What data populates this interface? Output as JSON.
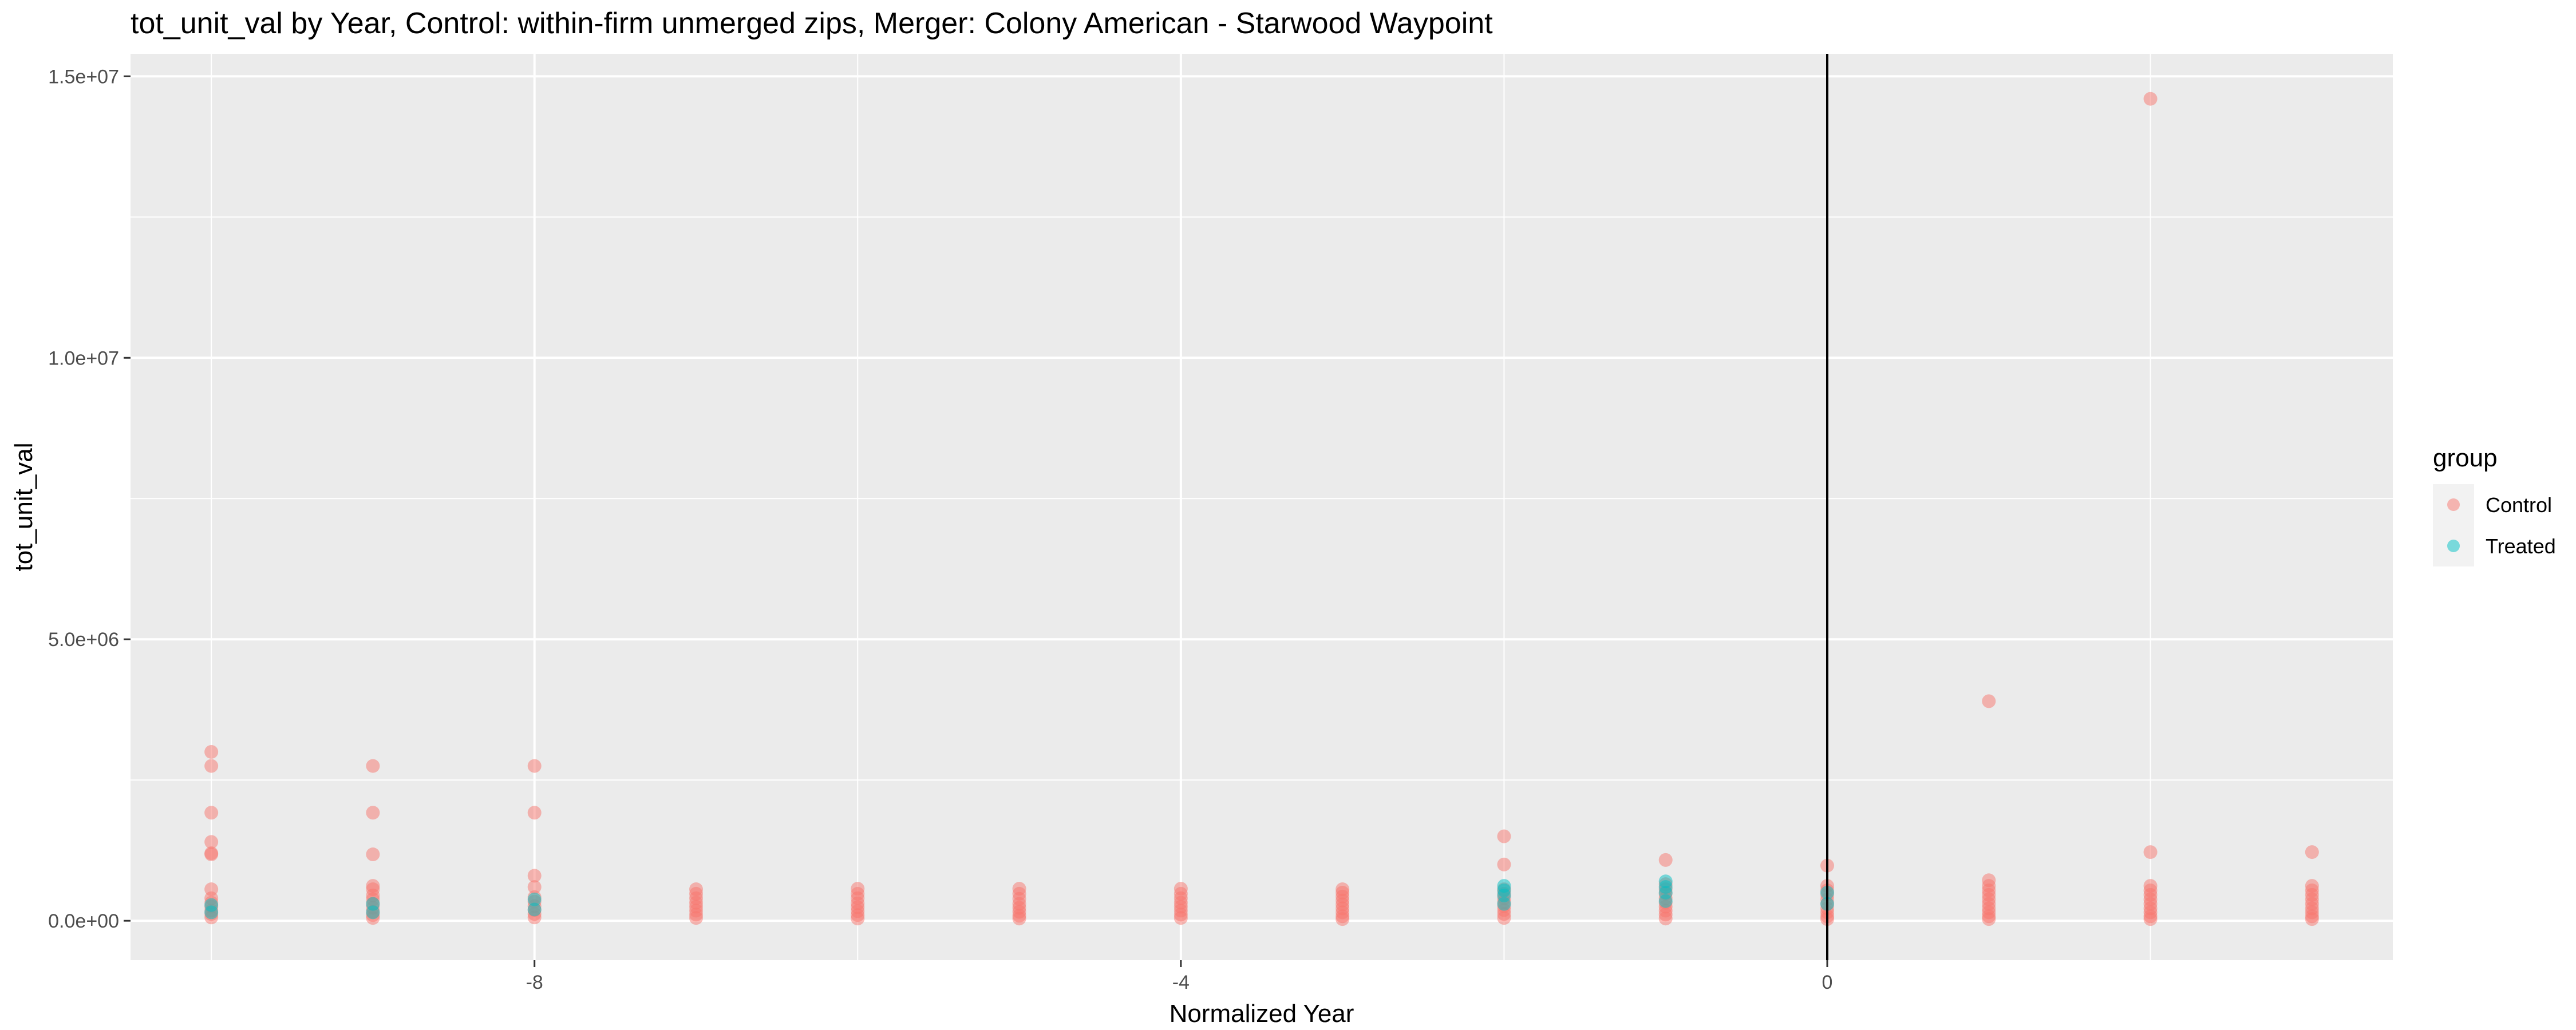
{
  "chart_data": {
    "type": "scatter",
    "title": "tot_unit_val by Year, Control: within-firm unmerged zips, Merger: Colony American - Starwood Waypoint",
    "xlabel": "Normalized Year",
    "ylabel": "tot_unit_val",
    "xlim": [
      -10.5,
      3.5
    ],
    "ylim": [
      -700000,
      15400000
    ],
    "x_ticks": [
      -8,
      -4,
      0
    ],
    "x_tick_labels": [
      "-8",
      "-4",
      "0"
    ],
    "y_ticks": [
      0,
      5000000,
      10000000,
      15000000
    ],
    "y_tick_labels": [
      "0.0e+00",
      "5.0e+06",
      "1.0e+07",
      "1.5e+07"
    ],
    "grid": true,
    "vline_x": 0,
    "legend": {
      "title": "group",
      "placement": "right"
    },
    "series": [
      {
        "name": "Control",
        "color": "#F8766D",
        "points": [
          [
            -10,
            3000000
          ],
          [
            -10,
            2750000
          ],
          [
            -10,
            1920000
          ],
          [
            -10,
            1400000
          ],
          [
            -10,
            1200000
          ],
          [
            -10,
            1180000
          ],
          [
            -10,
            560000
          ],
          [
            -10,
            400000
          ],
          [
            -10,
            320000
          ],
          [
            -10,
            250000
          ],
          [
            -10,
            180000
          ],
          [
            -10,
            120000
          ],
          [
            -10,
            60000
          ],
          [
            -9,
            2750000
          ],
          [
            -9,
            1920000
          ],
          [
            -9,
            1180000
          ],
          [
            -9,
            620000
          ],
          [
            -9,
            560000
          ],
          [
            -9,
            450000
          ],
          [
            -9,
            380000
          ],
          [
            -9,
            300000
          ],
          [
            -9,
            230000
          ],
          [
            -9,
            160000
          ],
          [
            -9,
            100000
          ],
          [
            -9,
            50000
          ],
          [
            -8,
            2750000
          ],
          [
            -8,
            1920000
          ],
          [
            -8,
            800000
          ],
          [
            -8,
            600000
          ],
          [
            -8,
            420000
          ],
          [
            -8,
            340000
          ],
          [
            -8,
            260000
          ],
          [
            -8,
            190000
          ],
          [
            -8,
            120000
          ],
          [
            -8,
            60000
          ],
          [
            -7,
            560000
          ],
          [
            -7,
            480000
          ],
          [
            -7,
            400000
          ],
          [
            -7,
            320000
          ],
          [
            -7,
            250000
          ],
          [
            -7,
            180000
          ],
          [
            -7,
            110000
          ],
          [
            -7,
            50000
          ],
          [
            -6,
            570000
          ],
          [
            -6,
            480000
          ],
          [
            -6,
            400000
          ],
          [
            -6,
            310000
          ],
          [
            -6,
            240000
          ],
          [
            -6,
            170000
          ],
          [
            -6,
            100000
          ],
          [
            -6,
            40000
          ],
          [
            -5,
            570000
          ],
          [
            -5,
            480000
          ],
          [
            -5,
            390000
          ],
          [
            -5,
            300000
          ],
          [
            -5,
            230000
          ],
          [
            -5,
            160000
          ],
          [
            -5,
            90000
          ],
          [
            -5,
            40000
          ],
          [
            -4,
            570000
          ],
          [
            -4,
            480000
          ],
          [
            -4,
            400000
          ],
          [
            -4,
            320000
          ],
          [
            -4,
            250000
          ],
          [
            -4,
            180000
          ],
          [
            -4,
            110000
          ],
          [
            -4,
            50000
          ],
          [
            -3,
            560000
          ],
          [
            -3,
            500000
          ],
          [
            -3,
            430000
          ],
          [
            -3,
            360000
          ],
          [
            -3,
            290000
          ],
          [
            -3,
            220000
          ],
          [
            -3,
            150000
          ],
          [
            -3,
            80000
          ],
          [
            -3,
            30000
          ],
          [
            -2,
            1500000
          ],
          [
            -2,
            1000000
          ],
          [
            -2,
            560000
          ],
          [
            -2,
            480000
          ],
          [
            -2,
            400000
          ],
          [
            -2,
            330000
          ],
          [
            -2,
            260000
          ],
          [
            -2,
            190000
          ],
          [
            -2,
            120000
          ],
          [
            -2,
            50000
          ],
          [
            -1,
            1080000
          ],
          [
            -1,
            650000
          ],
          [
            -1,
            560000
          ],
          [
            -1,
            480000
          ],
          [
            -1,
            400000
          ],
          [
            -1,
            320000
          ],
          [
            -1,
            250000
          ],
          [
            -1,
            180000
          ],
          [
            -1,
            110000
          ],
          [
            -1,
            40000
          ],
          [
            0,
            980000
          ],
          [
            0,
            620000
          ],
          [
            0,
            540000
          ],
          [
            0,
            460000
          ],
          [
            0,
            380000
          ],
          [
            0,
            300000
          ],
          [
            0,
            220000
          ],
          [
            0,
            150000
          ],
          [
            0,
            80000
          ],
          [
            0,
            30000
          ],
          [
            1,
            3900000
          ],
          [
            1,
            720000
          ],
          [
            1,
            620000
          ],
          [
            1,
            540000
          ],
          [
            1,
            460000
          ],
          [
            1,
            380000
          ],
          [
            1,
            300000
          ],
          [
            1,
            220000
          ],
          [
            1,
            150000
          ],
          [
            1,
            80000
          ],
          [
            1,
            30000
          ],
          [
            2,
            14600000
          ],
          [
            2,
            1220000
          ],
          [
            2,
            620000
          ],
          [
            2,
            540000
          ],
          [
            2,
            460000
          ],
          [
            2,
            380000
          ],
          [
            2,
            300000
          ],
          [
            2,
            220000
          ],
          [
            2,
            150000
          ],
          [
            2,
            80000
          ],
          [
            2,
            30000
          ],
          [
            3,
            1220000
          ],
          [
            3,
            620000
          ],
          [
            3,
            540000
          ],
          [
            3,
            460000
          ],
          [
            3,
            380000
          ],
          [
            3,
            300000
          ],
          [
            3,
            220000
          ],
          [
            3,
            150000
          ],
          [
            3,
            80000
          ],
          [
            3,
            30000
          ]
        ]
      },
      {
        "name": "Treated",
        "color": "#00BFC4",
        "points": [
          [
            -10,
            280000
          ],
          [
            -10,
            150000
          ],
          [
            -9,
            300000
          ],
          [
            -9,
            150000
          ],
          [
            -8,
            380000
          ],
          [
            -8,
            200000
          ],
          [
            -2,
            620000
          ],
          [
            -2,
            540000
          ],
          [
            -2,
            450000
          ],
          [
            -2,
            300000
          ],
          [
            -1,
            700000
          ],
          [
            -1,
            600000
          ],
          [
            -1,
            500000
          ],
          [
            -1,
            350000
          ],
          [
            0,
            500000
          ],
          [
            0,
            300000
          ]
        ]
      }
    ]
  }
}
